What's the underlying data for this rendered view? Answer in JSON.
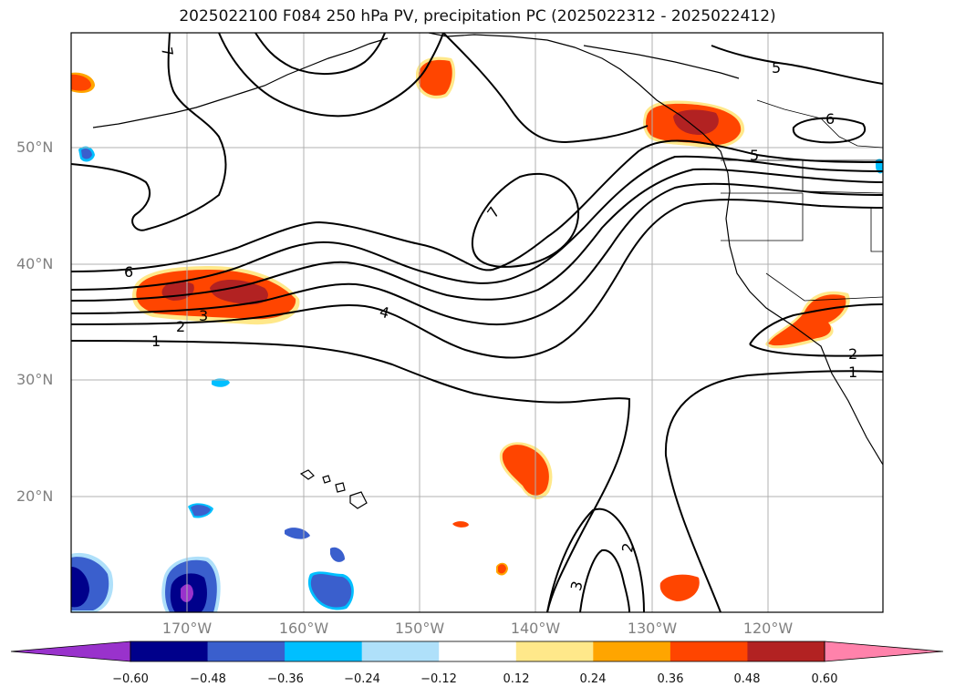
{
  "title": "2025022100 F084 250 hPa PV, precipitation PC (2025022312 - 2025022412)",
  "lat_labels": [
    "50°N",
    "40°N",
    "30°N",
    "20°N"
  ],
  "lon_labels": [
    "170°W",
    "160°W",
    "150°W",
    "140°W",
    "130°W",
    "120°W"
  ],
  "contour_labels": [
    "7",
    "5",
    "6",
    "5",
    "7",
    "6",
    "3",
    "2",
    "1",
    "4",
    "2",
    "1",
    "2",
    "3"
  ],
  "colorbar": {
    "ticks": [
      "−0.60",
      "−0.48",
      "−0.36",
      "−0.24",
      "−0.12",
      "0.12",
      "0.24",
      "0.36",
      "0.48",
      "0.60"
    ],
    "colors": [
      "#9932cc",
      "#00008b",
      "#3a5fcd",
      "#00bfff",
      "#afe0fa",
      "#ffffff",
      "#ffe88a",
      "#ffa500",
      "#ff4500",
      "#b22222",
      "#ff82ab"
    ]
  },
  "palette": {
    "neg_strong": "#00008b",
    "neg_mid": "#3a5fcd",
    "neg_light": "#00bfff",
    "neg_pale": "#afe0fa",
    "neg_purple": "#9932cc",
    "pos_pale": "#ffe88a",
    "pos_orange": "#ffa500",
    "pos_red": "#ff4500",
    "pos_dark": "#b22222"
  }
}
